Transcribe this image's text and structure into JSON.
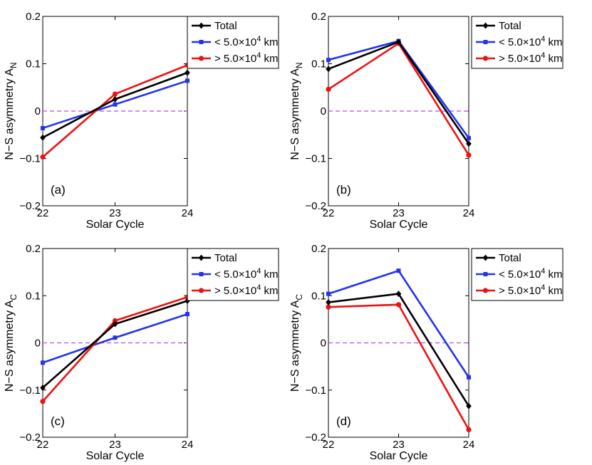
{
  "colors": {
    "total": "#000000",
    "small": "#2233ee",
    "large": "#ee1111",
    "zero_line": "#b44ee6"
  },
  "chart_data": [
    {
      "type": "line",
      "panel_label": "(a)",
      "xlabel": "Solar Cycle",
      "ylabel": "N−S asymmetry A",
      "ylabel_sub": "N",
      "categories": [
        "22",
        "23",
        "24"
      ],
      "ylim": [
        -0.2,
        0.2
      ],
      "yticks": [
        "−0.2",
        "−0.1",
        "0",
        "0.1",
        "0.2"
      ],
      "yticks_values": [
        -0.2,
        -0.1,
        0,
        0.1,
        0.2
      ],
      "legend_position": "outside-right-top",
      "series": [
        {
          "name": "Total",
          "marker": "diamond",
          "color": "#000000",
          "values": [
            -0.056,
            0.025,
            0.081
          ]
        },
        {
          "name": "< 5.0×10",
          "sup": "4",
          "unit": " km",
          "marker": "square",
          "color": "#2233ee",
          "values": [
            -0.036,
            0.014,
            0.064
          ]
        },
        {
          "name": "> 5.0×10",
          "sup": "4",
          "unit": " km",
          "marker": "circle",
          "color": "#ee1111",
          "values": [
            -0.097,
            0.036,
            0.097
          ]
        }
      ]
    },
    {
      "type": "line",
      "panel_label": "(b)",
      "xlabel": "Solar Cycle",
      "ylabel": "N−S asymmetry A",
      "ylabel_sub": "N",
      "categories": [
        "22",
        "23",
        "24"
      ],
      "ylim": [
        -0.2,
        0.2
      ],
      "yticks": [
        "−0.2",
        "−0.1",
        "0",
        "0.1",
        "0.2"
      ],
      "yticks_values": [
        -0.2,
        -0.1,
        0,
        0.1,
        0.2
      ],
      "legend_position": "outside-right-top",
      "series": [
        {
          "name": "Total",
          "marker": "diamond",
          "color": "#000000",
          "values": [
            0.089,
            0.146,
            -0.069
          ]
        },
        {
          "name": "< 5.0×10",
          "sup": "4",
          "unit": " km",
          "marker": "square",
          "color": "#2233ee",
          "values": [
            0.108,
            0.148,
            -0.057
          ]
        },
        {
          "name": "> 5.0×10",
          "sup": "4",
          "unit": " km",
          "marker": "circle",
          "color": "#ee1111",
          "values": [
            0.046,
            0.143,
            -0.093
          ]
        }
      ]
    },
    {
      "type": "line",
      "panel_label": "(c)",
      "xlabel": "Solar Cycle",
      "ylabel": "N−S asymmetry A",
      "ylabel_sub": "C",
      "categories": [
        "22",
        "23",
        "24"
      ],
      "ylim": [
        -0.2,
        0.2
      ],
      "yticks": [
        "−0.2",
        "−0.1",
        "0",
        "0.1",
        "0.2"
      ],
      "yticks_values": [
        -0.2,
        -0.1,
        0,
        0.1,
        0.2
      ],
      "legend_position": "outside-right-top",
      "series": [
        {
          "name": "Total",
          "marker": "diamond",
          "color": "#000000",
          "values": [
            -0.095,
            0.04,
            0.089
          ]
        },
        {
          "name": "< 5.0×10",
          "sup": "4",
          "unit": " km",
          "marker": "square",
          "color": "#2233ee",
          "values": [
            -0.042,
            0.011,
            0.061
          ]
        },
        {
          "name": "> 5.0×10",
          "sup": "4",
          "unit": " km",
          "marker": "circle",
          "color": "#ee1111",
          "values": [
            -0.124,
            0.047,
            0.097
          ]
        }
      ]
    },
    {
      "type": "line",
      "panel_label": "(d)",
      "xlabel": "Solar Cycle",
      "ylabel": "N−S asymmetry A",
      "ylabel_sub": "C",
      "categories": [
        "22",
        "23",
        "24"
      ],
      "ylim": [
        -0.2,
        0.2
      ],
      "yticks": [
        "−0.2",
        "−0.1",
        "0",
        "0.1",
        "0.2"
      ],
      "yticks_values": [
        -0.2,
        -0.1,
        0,
        0.1,
        0.2
      ],
      "legend_position": "outside-right-top",
      "series": [
        {
          "name": "Total",
          "marker": "diamond",
          "color": "#000000",
          "values": [
            0.086,
            0.104,
            -0.134
          ]
        },
        {
          "name": "< 5.0×10",
          "sup": "4",
          "unit": " km",
          "marker": "square",
          "color": "#2233ee",
          "values": [
            0.104,
            0.153,
            -0.073
          ]
        },
        {
          "name": "> 5.0×10",
          "sup": "4",
          "unit": " km",
          "marker": "circle",
          "color": "#ee1111",
          "values": [
            0.076,
            0.081,
            -0.184
          ]
        }
      ]
    }
  ]
}
